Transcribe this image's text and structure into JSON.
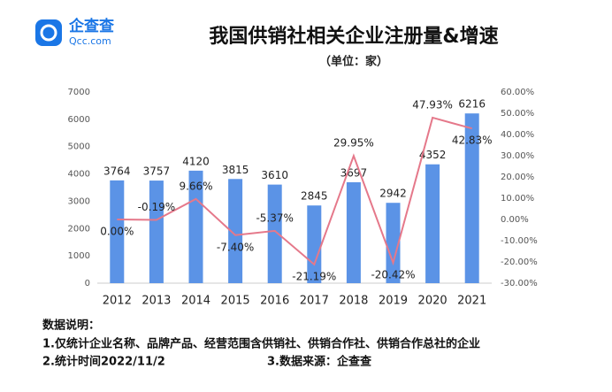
{
  "logo": {
    "name": "企查查",
    "url": "Qcc.com"
  },
  "chart_data": {
    "type": "bar-line",
    "title": "我国供销社相关企业注册量&增速",
    "subtitle": "（单位：家）",
    "categories": [
      "2012",
      "2013",
      "2014",
      "2015",
      "2016",
      "2017",
      "2018",
      "2019",
      "2020",
      "2021"
    ],
    "series": [
      {
        "type": "bar",
        "color": "#5b93e6",
        "values": [
          3764,
          3757,
          4120,
          3815,
          3610,
          2845,
          3697,
          2942,
          4352,
          6216
        ]
      },
      {
        "type": "line",
        "axis": "y2",
        "color": "#e5788a",
        "values": [
          0,
          -0.19,
          9.66,
          -7.4,
          -5.37,
          -21.19,
          29.95,
          -20.42,
          47.93,
          42.83
        ],
        "value_labels": [
          "0.00%",
          "-0.19%",
          "9.66%",
          "-7.40%",
          "-5.37%",
          "-21.19%",
          "29.95%",
          "-20.42%",
          "47.93%",
          "42.83%"
        ]
      }
    ],
    "ylim": [
      0,
      7000
    ],
    "yticks": [
      0,
      1000,
      2000,
      3000,
      4000,
      5000,
      6000,
      7000
    ],
    "y2lim": [
      -30,
      60
    ],
    "y2ticks": [
      {
        "value": -30,
        "label": "-30.00%"
      },
      {
        "value": -20,
        "label": "-20.00%"
      },
      {
        "value": -10,
        "label": "-10.00%"
      },
      {
        "value": 0,
        "label": "0.00%"
      },
      {
        "value": 10,
        "label": "10.00%"
      },
      {
        "value": 20,
        "label": "20.00%"
      },
      {
        "value": 30,
        "label": "30.00%"
      },
      {
        "value": 40,
        "label": "40.00%"
      },
      {
        "value": 50,
        "label": "50.00%"
      },
      {
        "value": 60,
        "label": "60.00%"
      }
    ]
  },
  "notes": {
    "heading": "数据说明：",
    "items": [
      "1.仅统计企业名称、品牌产品、经营范围含供销社、供销合作社、供销合作总社的企业",
      "2.统计时间2022/11/2",
      "3.数据来源：企查查"
    ]
  }
}
